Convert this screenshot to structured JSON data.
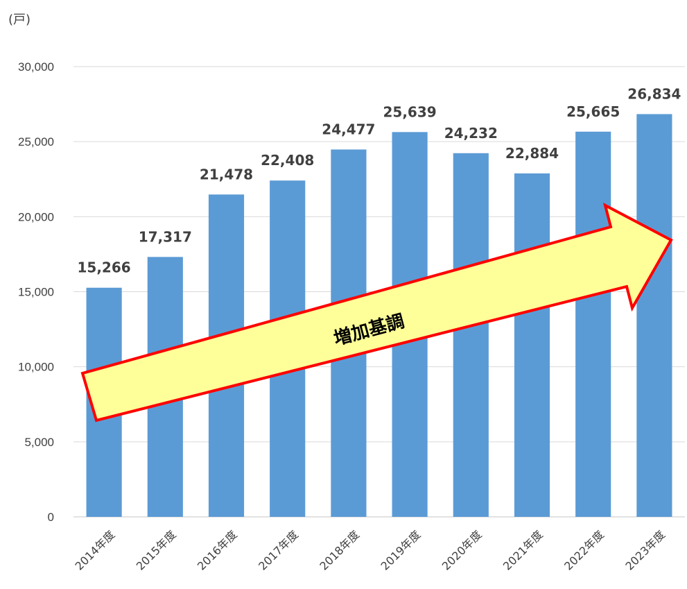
{
  "chart_data": {
    "type": "bar",
    "unit_label": "(戸)",
    "categories": [
      "2014年度",
      "2015年度",
      "2016年度",
      "2017年度",
      "2018年度",
      "2019年度",
      "2020年度",
      "2021年度",
      "2022年度",
      "2023年度"
    ],
    "values": [
      15266,
      17317,
      21478,
      22408,
      24477,
      25639,
      24232,
      22884,
      25665,
      26834
    ],
    "value_labels": [
      "15,266",
      "17,317",
      "21,478",
      "22,408",
      "24,477",
      "25,639",
      "24,232",
      "22,884",
      "25,665",
      "26,834"
    ],
    "ylim": [
      0,
      30000
    ],
    "yticks": [
      0,
      5000,
      10000,
      15000,
      20000,
      25000,
      30000
    ],
    "ytick_labels": [
      "0",
      "5,000",
      "10,000",
      "15,000",
      "20,000",
      "25,000",
      "30,000"
    ],
    "grid": true,
    "colors": {
      "bar": "#5b9bd5",
      "grid": "#d9d9d9",
      "arrow_fill": "#ffff99",
      "arrow_stroke": "#ff0000"
    },
    "annotation": {
      "text": "増加基調",
      "shape": "arrow",
      "direction": "up-right"
    }
  }
}
